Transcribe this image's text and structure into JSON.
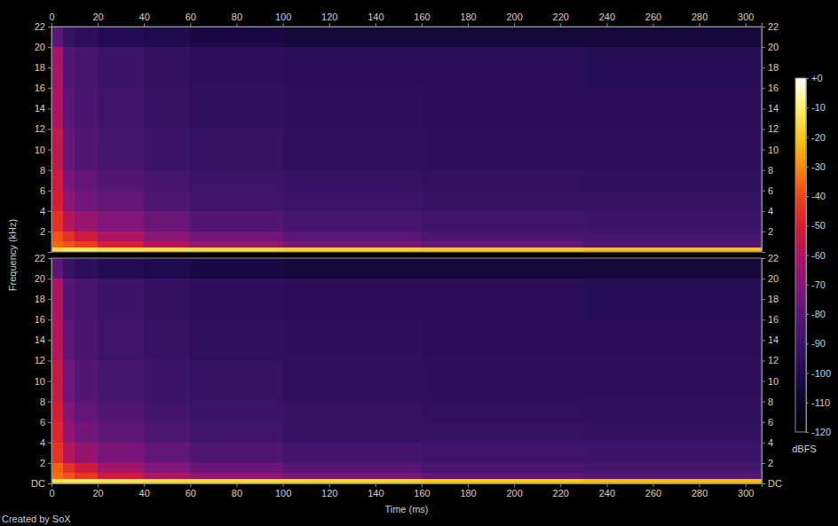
{
  "chart_data": {
    "type": "heatmap",
    "x_label": "Time (ms)",
    "y_label": "Frequency (kHz)",
    "footer": "Created by SoX",
    "xlim": [
      0,
      307
    ],
    "xticks": [
      0,
      20,
      40,
      60,
      80,
      100,
      120,
      140,
      160,
      180,
      200,
      220,
      240,
      260,
      280,
      300
    ],
    "x_edges": [
      0,
      5,
      10,
      20,
      40,
      60,
      100,
      160,
      230,
      307
    ],
    "y_edges": [
      0,
      0.4,
      1,
      2,
      4,
      6,
      8,
      12,
      16,
      20,
      22
    ],
    "panels": [
      {
        "ylim": [
          0,
          22
        ],
        "yticks": [
          2,
          4,
          6,
          8,
          10,
          12,
          14,
          16,
          18,
          20,
          22
        ],
        "cells": [
          [
            -15,
            -12,
            -12,
            -14,
            -15,
            -16,
            -18,
            -20,
            -22
          ],
          [
            -35,
            -38,
            -42,
            -50,
            -58,
            -65,
            -72,
            -78,
            -82
          ],
          [
            -38,
            -45,
            -52,
            -60,
            -68,
            -74,
            -80,
            -84,
            -86
          ],
          [
            -45,
            -58,
            -65,
            -70,
            -76,
            -82,
            -86,
            -88,
            -90
          ],
          [
            -50,
            -68,
            -74,
            -78,
            -84,
            -88,
            -90,
            -92,
            -92
          ],
          [
            -52,
            -72,
            -78,
            -82,
            -86,
            -90,
            -92,
            -93,
            -94
          ],
          [
            -55,
            -76,
            -82,
            -86,
            -90,
            -92,
            -94,
            -95,
            -95
          ],
          [
            -60,
            -80,
            -85,
            -88,
            -92,
            -94,
            -95,
            -96,
            -96
          ],
          [
            -62,
            -82,
            -86,
            -90,
            -93,
            -95,
            -96,
            -96,
            -97
          ],
          [
            -80,
            -92,
            -95,
            -98,
            -100,
            -102,
            -104,
            -104,
            -105
          ]
        ]
      },
      {
        "ylim": [
          0,
          22
        ],
        "yticks": [
          {
            "value": 0,
            "label": "DC"
          },
          2,
          4,
          6,
          8,
          10,
          12,
          14,
          16,
          18,
          20,
          22
        ],
        "cells": [
          [
            -14,
            -12,
            -12,
            -13,
            -15,
            -16,
            -18,
            -20,
            -22
          ],
          [
            -34,
            -38,
            -43,
            -52,
            -60,
            -66,
            -72,
            -78,
            -82
          ],
          [
            -36,
            -44,
            -52,
            -62,
            -70,
            -76,
            -81,
            -85,
            -87
          ],
          [
            -44,
            -58,
            -66,
            -72,
            -78,
            -83,
            -87,
            -89,
            -90
          ],
          [
            -48,
            -66,
            -74,
            -79,
            -84,
            -88,
            -91,
            -92,
            -93
          ],
          [
            -50,
            -70,
            -78,
            -82,
            -87,
            -90,
            -92,
            -93,
            -94
          ],
          [
            -54,
            -75,
            -82,
            -86,
            -90,
            -92,
            -94,
            -95,
            -95
          ],
          [
            -58,
            -79,
            -85,
            -89,
            -92,
            -94,
            -95,
            -96,
            -96
          ],
          [
            -60,
            -82,
            -86,
            -90,
            -93,
            -95,
            -96,
            -96,
            -97
          ],
          [
            -80,
            -92,
            -95,
            -98,
            -100,
            -102,
            -104,
            -104,
            -105
          ]
        ]
      }
    ],
    "colorbar": {
      "label": "dBFS",
      "range": [
        -120,
        0
      ],
      "ticks": [
        {
          "value": 0,
          "label": "+0"
        },
        -10,
        -20,
        -30,
        -40,
        -50,
        -60,
        -70,
        -80,
        -90,
        -100,
        -110,
        -120
      ]
    }
  }
}
